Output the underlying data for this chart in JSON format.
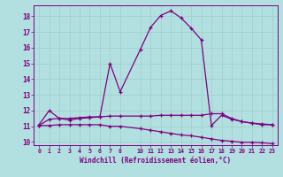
{
  "background_color": "#b2e0e0",
  "line_color": "#800080",
  "xlabel": "Windchill (Refroidissement éolien,°C)",
  "ylim": [
    9.8,
    18.7
  ],
  "xlim": [
    -0.5,
    23.5
  ],
  "yticks": [
    10,
    11,
    12,
    13,
    14,
    15,
    16,
    17,
    18
  ],
  "xticks": [
    0,
    1,
    2,
    3,
    4,
    5,
    6,
    7,
    8,
    10,
    11,
    12,
    13,
    14,
    15,
    16,
    17,
    18,
    19,
    20,
    21,
    22,
    23
  ],
  "xtick_labels": [
    "0",
    "1",
    "2",
    "3",
    "4",
    "5",
    "6",
    "7",
    "8",
    "10",
    "11",
    "12",
    "13",
    "14",
    "15",
    "16",
    "17",
    "18",
    "19",
    "20",
    "21",
    "22",
    "23"
  ],
  "curve1_x": [
    0,
    1,
    2,
    3,
    4,
    5,
    6,
    7,
    8,
    10,
    11,
    12,
    13,
    14,
    15,
    16,
    17,
    18,
    19,
    20,
    21,
    22,
    23
  ],
  "curve1_y": [
    11.1,
    12.0,
    11.5,
    11.4,
    11.5,
    11.55,
    11.6,
    15.0,
    13.2,
    15.9,
    17.3,
    18.05,
    18.35,
    17.9,
    17.25,
    16.5,
    11.05,
    11.7,
    11.45,
    11.3,
    11.2,
    11.1,
    11.1
  ],
  "curve2_x": [
    0,
    1,
    2,
    3,
    4,
    5,
    6,
    7,
    8,
    10,
    11,
    12,
    13,
    14,
    15,
    16,
    17,
    18,
    19,
    20,
    21,
    22,
    23
  ],
  "curve2_y": [
    11.05,
    11.45,
    11.5,
    11.5,
    11.55,
    11.6,
    11.6,
    11.65,
    11.65,
    11.65,
    11.65,
    11.7,
    11.7,
    11.7,
    11.7,
    11.7,
    11.8,
    11.8,
    11.5,
    11.3,
    11.2,
    11.15,
    11.1
  ],
  "curve3_x": [
    0,
    1,
    2,
    3,
    4,
    5,
    6,
    7,
    8,
    10,
    11,
    12,
    13,
    14,
    15,
    16,
    17,
    18,
    19,
    20,
    21,
    22,
    23
  ],
  "curve3_y": [
    11.05,
    11.05,
    11.1,
    11.1,
    11.1,
    11.1,
    11.1,
    11.0,
    11.0,
    10.85,
    10.75,
    10.65,
    10.55,
    10.45,
    10.4,
    10.3,
    10.2,
    10.1,
    10.05,
    9.98,
    9.98,
    9.95,
    9.9
  ]
}
